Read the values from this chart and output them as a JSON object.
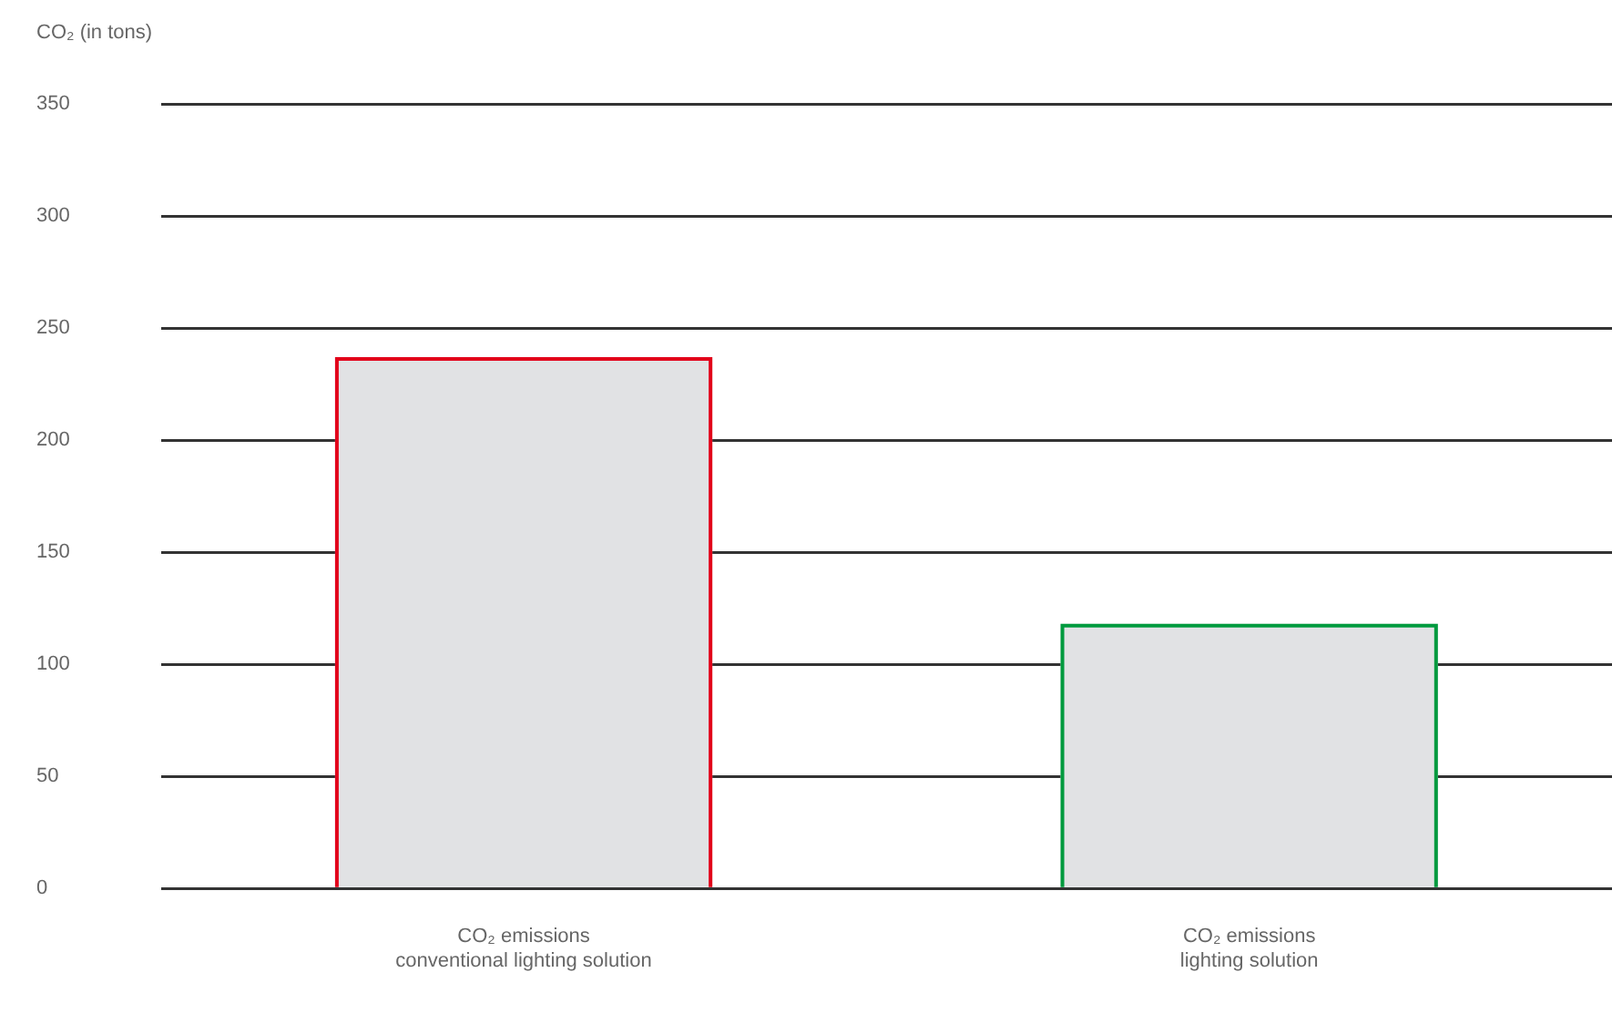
{
  "chart_data": {
    "type": "bar",
    "annotations": [
      "CO₂ (in tons)"
    ],
    "categories": [
      "CO₂ emissions\nconventional lighting solution",
      "CO₂ emissions\nlighting solution"
    ],
    "values": [
      237,
      118
    ],
    "colors": [
      "#e1e2e4",
      "#e1e2e4"
    ],
    "ylim": [
      0,
      350
    ],
    "yticks": [
      0,
      50,
      100,
      150,
      200,
      250,
      300,
      350
    ],
    "grid": "y"
  }
}
